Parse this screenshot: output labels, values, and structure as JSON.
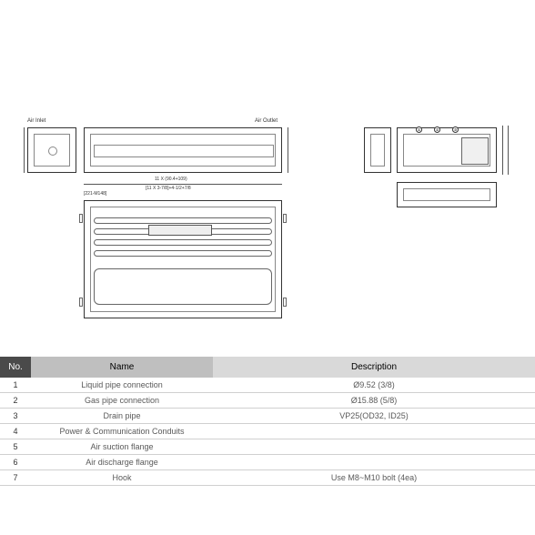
{
  "labels": {
    "air_inlet": "Air Inlet",
    "air_outlet": "Air Outlet"
  },
  "dim_labels": {
    "main_width": "11 X (90.4+109)",
    "main_width2": "[11 X 3-7/8]+4-1/2+7/8",
    "left_box": "[221-M148]"
  },
  "table": {
    "headers": {
      "no": "No.",
      "name": "Name",
      "desc": "Description"
    },
    "rows": [
      {
        "no": "1",
        "name": "Liquid pipe connection",
        "desc": "Ø9.52 (3/8)"
      },
      {
        "no": "2",
        "name": "Gas pipe connection",
        "desc": "Ø15.88 (5/8)"
      },
      {
        "no": "3",
        "name": "Drain pipe",
        "desc": "VP25(OD32, ID25)"
      },
      {
        "no": "4",
        "name": "Power & Communication Conduits",
        "desc": ""
      },
      {
        "no": "5",
        "name": "Air suction flange",
        "desc": ""
      },
      {
        "no": "6",
        "name": "Air discharge flange",
        "desc": ""
      },
      {
        "no": "7",
        "name": "Hook",
        "desc": "Use M8~M10 bolt (4ea)"
      }
    ]
  },
  "callouts": [
    "1",
    "2",
    "3",
    "4",
    "5",
    "6",
    "7"
  ]
}
